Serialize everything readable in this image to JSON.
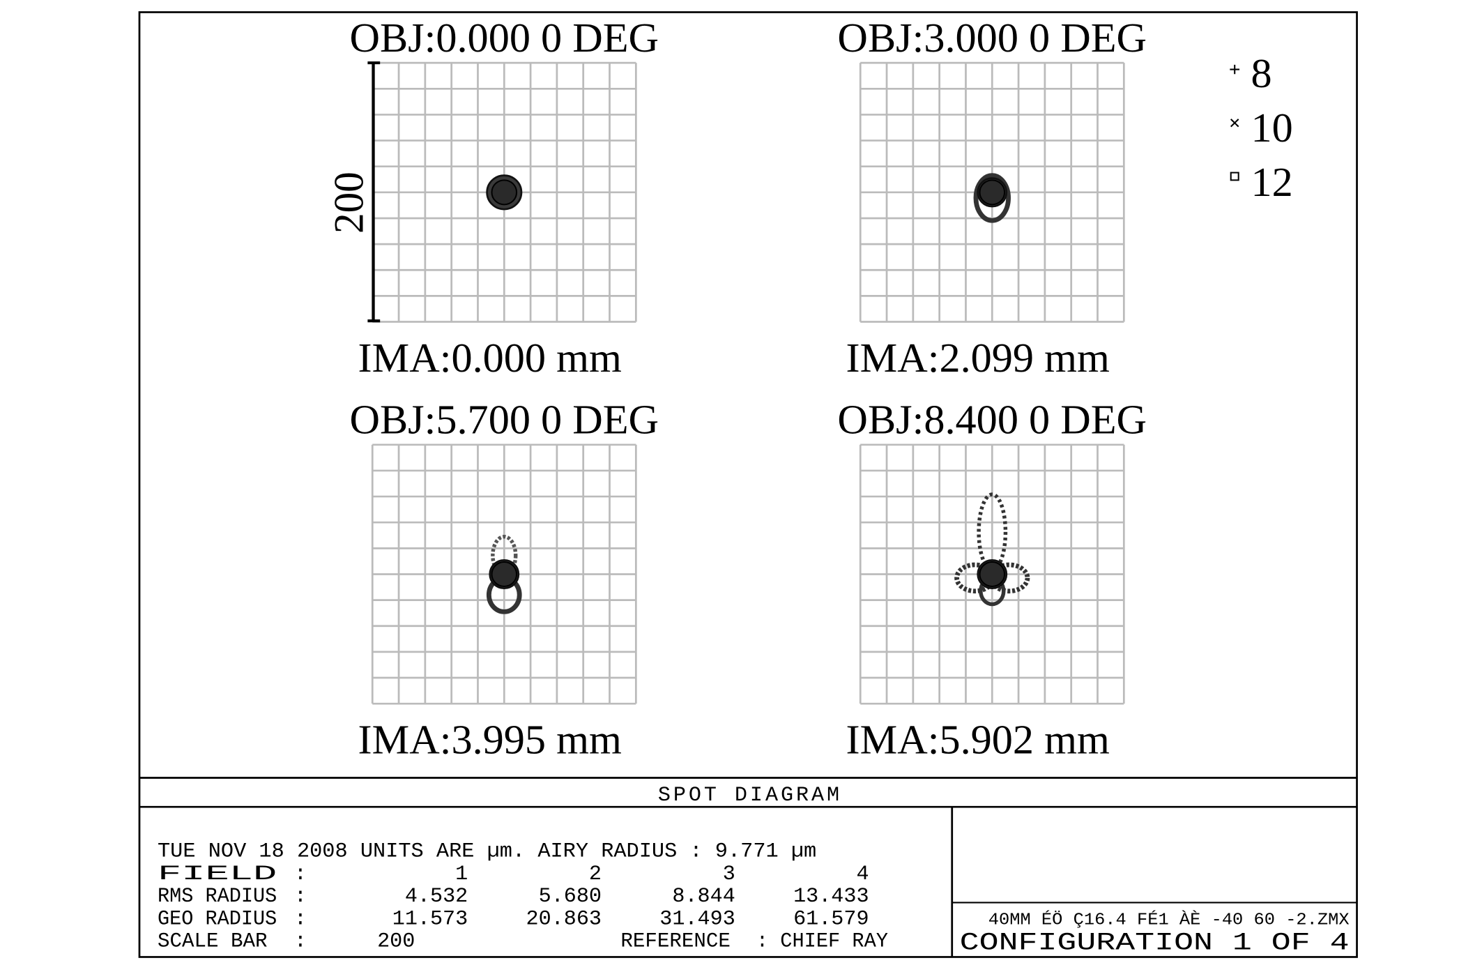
{
  "panels": [
    {
      "obj": "OBJ:0.000 0 DEG",
      "ima": "IMA:0.000 mm"
    },
    {
      "obj": "OBJ:3.000 0 DEG",
      "ima": "IMA:2.099 mm"
    },
    {
      "obj": "OBJ:5.700 0 DEG",
      "ima": "IMA:3.995 mm"
    },
    {
      "obj": "OBJ:8.400 0 DEG",
      "ima": "IMA:5.902 mm"
    }
  ],
  "scale_label": "200",
  "legend": [
    "8",
    "10",
    "12"
  ],
  "footer": {
    "title": "SPOT DIAGRAM",
    "header_line": "TUE NOV 18 2008  UNITS ARE µm.  AIRY RADIUS : 9.771 µm",
    "rows": [
      [
        "FIELD",
        ":",
        "1",
        "2",
        "3",
        "4"
      ],
      [
        "RMS RADIUS",
        ":",
        "4.532",
        "5.680",
        "8.844",
        "13.433"
      ],
      [
        "GEO RADIUS",
        ":",
        "11.573",
        "20.863",
        "31.493",
        "61.579"
      ]
    ],
    "scale_row": [
      "SCALE BAR",
      ":",
      "200",
      "REFERENCE",
      ": CHIEF RAY"
    ],
    "file_line": "40MM ÉÖ Ç16.4 FÉ1 ÀÈ  -40  60 -2.ZMX",
    "configuration": "CONFIGURATION  1  OF  4"
  }
}
